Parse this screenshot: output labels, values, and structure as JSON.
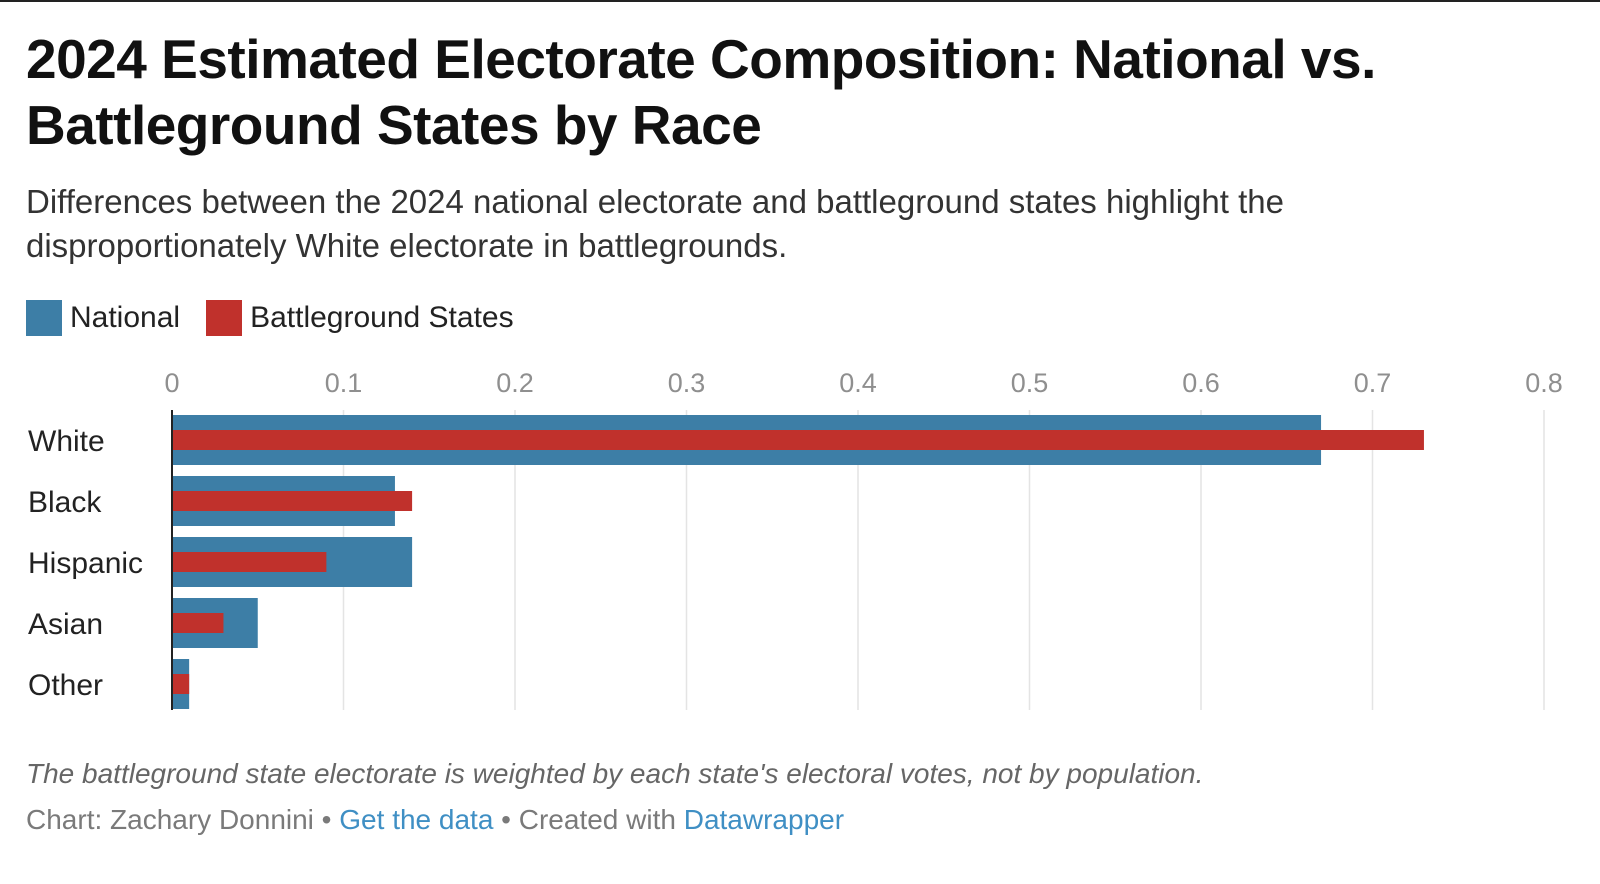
{
  "chart_data": {
    "type": "bar",
    "orientation": "horizontal",
    "title": "2024 Estimated Electorate Composition: National vs. Battleground States by Race",
    "subtitle": "Differences between the 2024 national electorate and battleground states highlight the disproportionately White electorate in battlegrounds.",
    "categories": [
      "White",
      "Black",
      "Hispanic",
      "Asian",
      "Other"
    ],
    "series": [
      {
        "name": "National",
        "color": "#3d7ea6",
        "values": [
          0.67,
          0.13,
          0.14,
          0.05,
          0.01
        ]
      },
      {
        "name": "Battleground States",
        "color": "#c0312c",
        "values": [
          0.73,
          0.14,
          0.09,
          0.03,
          0.01
        ]
      }
    ],
    "xlim": [
      0,
      0.8
    ],
    "xticks": [
      "0",
      "0.1",
      "0.2",
      "0.3",
      "0.4",
      "0.5",
      "0.6",
      "0.7",
      "0.8"
    ],
    "grid": true,
    "legend_position": "top-left",
    "xlabel": "",
    "ylabel": ""
  },
  "notes": "The battleground state electorate is weighted by each state's electoral votes, not by population.",
  "footer": {
    "credit": "Chart: Zachary Donnini",
    "separator": " • ",
    "get_data_label": "Get the data",
    "created_with": "Created with",
    "tool_label": "Datawrapper"
  }
}
